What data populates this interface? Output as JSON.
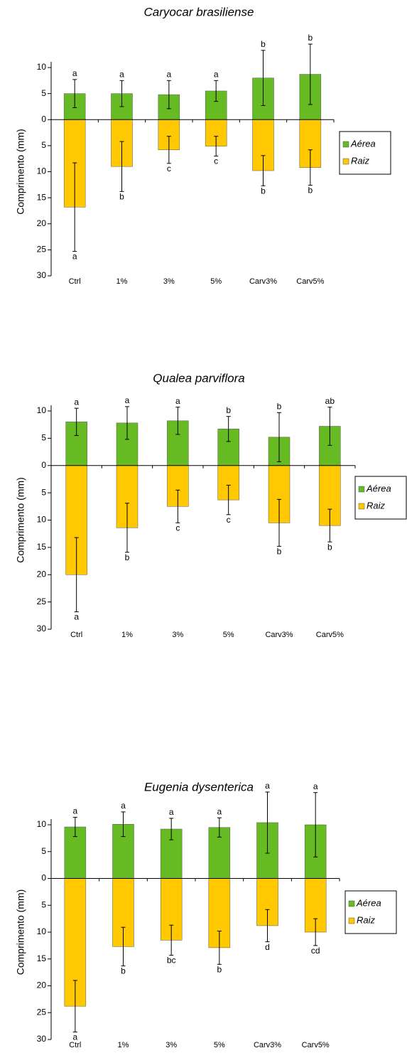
{
  "chart_data": [
    {
      "type": "bar",
      "title": "Caryocar brasiliense",
      "ylabel": "Comprimento (mm)",
      "categories": [
        "Ctrl",
        "1%",
        "3%",
        "5%",
        "Carv3%",
        "Carv5%"
      ],
      "series": [
        {
          "name": "Aérea",
          "color": "#66bb22",
          "values": [
            5,
            5,
            4.8,
            5.5,
            8,
            8.7
          ],
          "errors": [
            2.7,
            2.5,
            2.7,
            2,
            5.3,
            5.8
          ],
          "labels": [
            "a",
            "a",
            "a",
            "a",
            "b",
            "b"
          ]
        },
        {
          "name": "Raiz",
          "color": "#ffc800",
          "values": [
            -16.8,
            -9,
            -5.8,
            -5.1,
            -9.8,
            -9.2
          ],
          "errors": [
            8.5,
            4.8,
            2.6,
            1.9,
            2.9,
            3.4
          ],
          "labels": [
            "a",
            "b",
            "c",
            "c",
            "b",
            "b"
          ]
        }
      ],
      "ylim": [
        -30,
        10
      ],
      "yticks": [
        10,
        5,
        0,
        {
          "value": -5,
          "label": "5"
        },
        {
          "value": -10,
          "label": "10"
        },
        {
          "value": -15,
          "label": "15"
        },
        {
          "value": -20,
          "label": "20"
        },
        {
          "value": -25,
          "label": "25"
        },
        {
          "value": -30,
          "label": "30"
        }
      ]
    },
    {
      "type": "bar",
      "title": "Qualea parviflora",
      "ylabel": "Comprimento (mm)",
      "categories": [
        "Ctrl",
        "1%",
        "3%",
        "5%",
        "Carv3%",
        "Carv5%"
      ],
      "series": [
        {
          "name": "Aérea",
          "color": "#66bb22",
          "values": [
            8,
            7.8,
            8.2,
            6.7,
            5.2,
            7.2
          ],
          "errors": [
            2.5,
            3,
            2.5,
            2.3,
            4.5,
            3.5
          ],
          "labels": [
            "a",
            "a",
            "a",
            "b",
            "b",
            "ab"
          ]
        },
        {
          "name": "Raiz",
          "color": "#ffc800",
          "values": [
            -20,
            -11.4,
            -7.5,
            -6.3,
            -10.5,
            -11
          ],
          "errors": [
            6.8,
            4.5,
            3,
            2.7,
            4.3,
            3
          ],
          "labels": [
            "a",
            "b",
            "c",
            "c",
            "b",
            "b"
          ]
        }
      ],
      "ylim": [
        -30,
        10
      ],
      "yticks": [
        10,
        5,
        0,
        {
          "value": -5,
          "label": "5"
        },
        {
          "value": -10,
          "label": "10"
        },
        {
          "value": -15,
          "label": "15"
        },
        {
          "value": -20,
          "label": "20"
        },
        {
          "value": -25,
          "label": "25"
        },
        {
          "value": -30,
          "label": "30"
        }
      ]
    },
    {
      "type": "bar",
      "title": "Eugenia dysenterica",
      "ylabel": "Comprimento (mm)",
      "categories": [
        "Ctrl",
        "1%",
        "3%",
        "5%",
        "Carv3%",
        "Carv5%"
      ],
      "series": [
        {
          "name": "Aérea",
          "color": "#66bb22",
          "values": [
            9.6,
            10.1,
            9.2,
            9.5,
            10.4,
            10
          ],
          "errors": [
            1.8,
            2.3,
            2,
            1.8,
            5.7,
            6
          ],
          "labels": [
            "a",
            "a",
            "a",
            "a",
            "a",
            "a"
          ]
        },
        {
          "name": "Raiz",
          "color": "#ffc800",
          "values": [
            -23.8,
            -12.7,
            -11.5,
            -12.9,
            -8.8,
            -10
          ],
          "errors": [
            4.8,
            3.6,
            2.8,
            3.1,
            3,
            2.5
          ],
          "labels": [
            "a",
            "b",
            "bc",
            "b",
            "d",
            "cd"
          ]
        }
      ],
      "ylim": [
        -30,
        10
      ],
      "yticks": [
        10,
        5,
        0,
        {
          "value": -5,
          "label": "5"
        },
        {
          "value": -10,
          "label": "10"
        },
        {
          "value": -15,
          "label": "15"
        },
        {
          "value": -20,
          "label": "20"
        },
        {
          "value": -25,
          "label": "25"
        },
        {
          "value": -30,
          "label": "30"
        }
      ]
    }
  ]
}
